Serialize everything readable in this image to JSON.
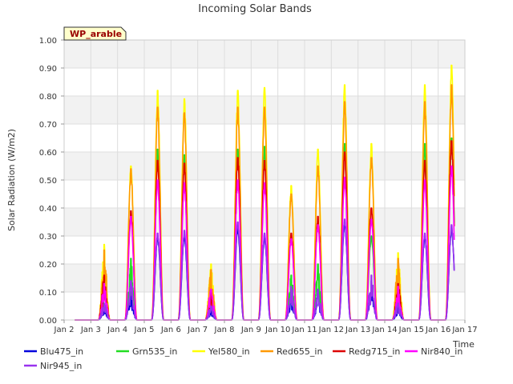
{
  "chart_data": {
    "type": "line",
    "title": "Incoming Solar Bands",
    "xlabel": "Time",
    "ylabel": "Solar Radiation (W/m2)",
    "station_label": "WP_arable",
    "ylim": [
      0,
      1.0
    ],
    "yticks": [
      "0.00",
      "0.10",
      "0.20",
      "0.30",
      "0.40",
      "0.50",
      "0.60",
      "0.70",
      "0.80",
      "0.90",
      "1.00"
    ],
    "xlim": [
      2,
      17
    ],
    "xticks": [
      "Jan 2",
      "Jan 3",
      "Jan 4",
      "Jan 5",
      "Jan 6",
      "Jan 7",
      "Jan 8",
      "Jan 9",
      "Jan 10",
      "Jan 11",
      "Jan 12",
      "Jan 13",
      "Jan 14",
      "Jan 15",
      "Jan 16",
      "Jan 17"
    ],
    "grid": true,
    "legend_placement": "bottom",
    "days": [
      3,
      4,
      5,
      6,
      7,
      8,
      9,
      10,
      11,
      12,
      13,
      14,
      15,
      16
    ],
    "series": [
      {
        "name": "Blu475_in",
        "color": "#0000dd",
        "peaks": [
          0.05,
          0.1,
          0.3,
          0.3,
          0.04,
          0.33,
          0.3,
          0.1,
          0.1,
          0.35,
          0.14,
          0.05,
          0.3,
          0.33
        ]
      },
      {
        "name": "Grn535_in",
        "color": "#22dd22",
        "peaks": [
          0.15,
          0.22,
          0.61,
          0.59,
          0.09,
          0.61,
          0.62,
          0.16,
          0.2,
          0.63,
          0.3,
          0.15,
          0.63,
          0.65
        ]
      },
      {
        "name": "Yel580_in",
        "color": "#ffff00",
        "peaks": [
          0.27,
          0.55,
          0.82,
          0.79,
          0.2,
          0.82,
          0.83,
          0.48,
          0.61,
          0.84,
          0.63,
          0.24,
          0.84,
          0.91
        ]
      },
      {
        "name": "Red655_in",
        "color": "#ff9900",
        "peaks": [
          0.25,
          0.54,
          0.76,
          0.74,
          0.18,
          0.76,
          0.76,
          0.45,
          0.55,
          0.78,
          0.58,
          0.22,
          0.78,
          0.84
        ]
      },
      {
        "name": "Redg715_in",
        "color": "#dd0000",
        "peaks": [
          0.16,
          0.39,
          0.57,
          0.56,
          0.1,
          0.58,
          0.57,
          0.31,
          0.37,
          0.6,
          0.4,
          0.13,
          0.57,
          0.64
        ]
      },
      {
        "name": "Nir840_in",
        "color": "#ff00ff",
        "peaks": [
          0.13,
          0.37,
          0.5,
          0.49,
          0.11,
          0.5,
          0.49,
          0.29,
          0.34,
          0.51,
          0.36,
          0.12,
          0.5,
          0.55
        ]
      },
      {
        "name": "Nir945_in",
        "color": "#9933ee",
        "peaks": [
          0.06,
          0.14,
          0.31,
          0.32,
          0.05,
          0.35,
          0.31,
          0.12,
          0.11,
          0.36,
          0.16,
          0.06,
          0.31,
          0.34
        ]
      }
    ]
  }
}
